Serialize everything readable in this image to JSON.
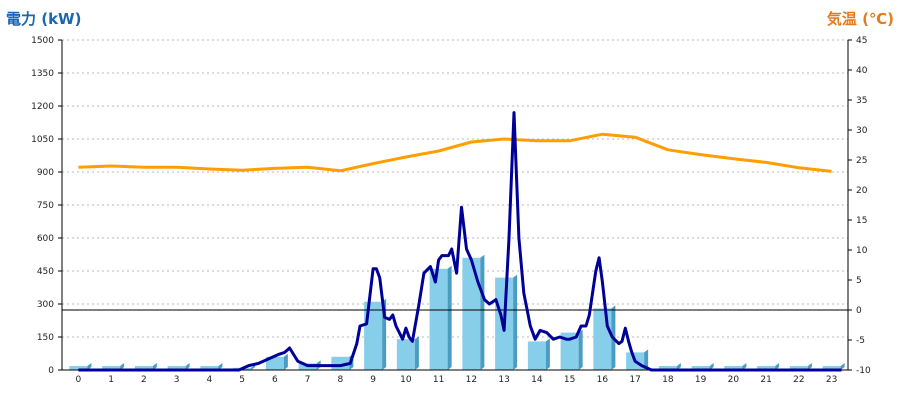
{
  "chart_data": {
    "type": "bar+line",
    "title": "",
    "ylabel_left": "電力 (kW)",
    "ylabel_right": "気温 (℃)",
    "xlabel": "",
    "ylim_left": [
      0,
      1500
    ],
    "ylim_right": [
      -10,
      45
    ],
    "left_ticks": [
      0,
      150,
      300,
      450,
      600,
      750,
      900,
      1050,
      1200,
      1350,
      1500
    ],
    "right_ticks": [
      -10,
      -5,
      0,
      5,
      10,
      15,
      20,
      25,
      30,
      35,
      40,
      45
    ],
    "x_ticks": [
      0,
      1,
      2,
      3,
      4,
      5,
      6,
      7,
      8,
      9,
      10,
      11,
      12,
      13,
      14,
      15,
      16,
      17,
      18,
      19,
      20,
      21,
      22,
      23
    ],
    "grid": true,
    "reference_line_temperature": 0,
    "bars_hourly_power": [
      0,
      0,
      0,
      0,
      0,
      10,
      60,
      30,
      60,
      310,
      140,
      460,
      510,
      420,
      130,
      170,
      280,
      80,
      0,
      0,
      0,
      0,
      0,
      0
    ],
    "power_line": [
      [
        0,
        0
      ],
      [
        0.5,
        0
      ],
      [
        1,
        0
      ],
      [
        1.5,
        0
      ],
      [
        2,
        0
      ],
      [
        2.5,
        0
      ],
      [
        3,
        0
      ],
      [
        3.5,
        0
      ],
      [
        4,
        0
      ],
      [
        4.5,
        0
      ],
      [
        4.9,
        0
      ],
      [
        5.2,
        20
      ],
      [
        5.5,
        30
      ],
      [
        5.8,
        50
      ],
      [
        6.1,
        70
      ],
      [
        6.3,
        80
      ],
      [
        6.45,
        100
      ],
      [
        6.7,
        40
      ],
      [
        7,
        20
      ],
      [
        7.5,
        20
      ],
      [
        8,
        20
      ],
      [
        8.3,
        30
      ],
      [
        8.5,
        120
      ],
      [
        8.6,
        200
      ],
      [
        8.8,
        210
      ],
      [
        9,
        460
      ],
      [
        9.1,
        460
      ],
      [
        9.2,
        420
      ],
      [
        9.35,
        240
      ],
      [
        9.5,
        230
      ],
      [
        9.6,
        250
      ],
      [
        9.7,
        200
      ],
      [
        9.9,
        140
      ],
      [
        10,
        190
      ],
      [
        10.1,
        150
      ],
      [
        10.2,
        130
      ],
      [
        10.4,
        300
      ],
      [
        10.55,
        440
      ],
      [
        10.75,
        470
      ],
      [
        10.9,
        400
      ],
      [
        11,
        500
      ],
      [
        11.1,
        520
      ],
      [
        11.3,
        520
      ],
      [
        11.4,
        550
      ],
      [
        11.55,
        440
      ],
      [
        11.7,
        740
      ],
      [
        11.85,
        550
      ],
      [
        12,
        500
      ],
      [
        12.2,
        400
      ],
      [
        12.4,
        320
      ],
      [
        12.55,
        300
      ],
      [
        12.75,
        320
      ],
      [
        12.9,
        250
      ],
      [
        13,
        180
      ],
      [
        13.15,
        600
      ],
      [
        13.3,
        1170
      ],
      [
        13.45,
        600
      ],
      [
        13.6,
        350
      ],
      [
        13.8,
        200
      ],
      [
        13.95,
        140
      ],
      [
        14.1,
        180
      ],
      [
        14.3,
        170
      ],
      [
        14.5,
        140
      ],
      [
        14.7,
        150
      ],
      [
        14.9,
        140
      ],
      [
        15,
        140
      ],
      [
        15.2,
        150
      ],
      [
        15.35,
        200
      ],
      [
        15.5,
        200
      ],
      [
        15.6,
        250
      ],
      [
        15.8,
        450
      ],
      [
        15.9,
        510
      ],
      [
        16,
        400
      ],
      [
        16.15,
        200
      ],
      [
        16.3,
        150
      ],
      [
        16.5,
        120
      ],
      [
        16.6,
        130
      ],
      [
        16.7,
        190
      ],
      [
        16.8,
        130
      ],
      [
        16.9,
        80
      ],
      [
        17,
        40
      ],
      [
        17.2,
        20
      ],
      [
        17.5,
        0
      ],
      [
        18,
        0
      ],
      [
        19,
        0
      ],
      [
        20,
        0
      ],
      [
        21,
        0
      ],
      [
        22,
        0
      ],
      [
        23,
        0
      ],
      [
        23.3,
        0
      ]
    ],
    "temperature_line": [
      [
        0,
        23.8
      ],
      [
        1,
        24
      ],
      [
        2,
        23.8
      ],
      [
        3,
        23.8
      ],
      [
        4,
        23.5
      ],
      [
        5,
        23.3
      ],
      [
        6,
        23.6
      ],
      [
        7,
        23.8
      ],
      [
        8,
        23.2
      ],
      [
        9,
        24.4
      ],
      [
        10,
        25.5
      ],
      [
        11,
        26.5
      ],
      [
        12,
        28
      ],
      [
        13,
        28.5
      ],
      [
        14,
        28.2
      ],
      [
        15,
        28.2
      ],
      [
        16,
        29.3
      ],
      [
        17,
        28.8
      ],
      [
        18,
        26.7
      ],
      [
        19,
        25.9
      ],
      [
        20,
        25.2
      ],
      [
        21,
        24.6
      ],
      [
        22,
        23.7
      ],
      [
        23,
        23.1
      ]
    ],
    "colors": {
      "bar_fill": "#87ceeb",
      "bar_side": "#4a9cc2",
      "power_line": "#000099",
      "temperature_line": "#ff9e00",
      "grid": "#b8b8b8",
      "axis": "#000000",
      "left_title": "#1a66b0",
      "right_title": "#e47b1c"
    }
  }
}
